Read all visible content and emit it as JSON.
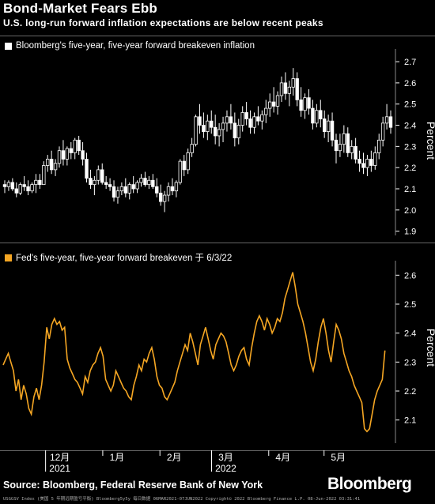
{
  "header": {
    "title": "Bond-Market Fears Ebb",
    "subtitle": "U.S. long-run forward inflation expectations are below recent peaks"
  },
  "footer": {
    "source": "Source: Bloomberg, Federal Reserve Bank of New York",
    "brand": "Bloomberg",
    "fineprint": "USGGSV Index (美国 5 年期远期盈亏平衡) Bloomberg5y5y  每日数据 06MAR2021-07JUN2022   Copyright© 2022 Bloomberg Finance L.P.   08-Jun-2022 03:31:41"
  },
  "colors": {
    "candle": "#ffffff",
    "fed_line": "#f5a623",
    "background": "#000000",
    "rule": "#666666"
  },
  "x_axis": {
    "ticks": [
      {
        "label": "12月",
        "date": "2021-12-01"
      },
      {
        "label": "1月",
        "date": "2022-01-01"
      },
      {
        "label": "2月",
        "date": "2022-02-01"
      },
      {
        "label": "3月",
        "date": "2022-03-01"
      },
      {
        "label": "4月",
        "date": "2022-04-01"
      },
      {
        "label": "5月",
        "date": "2022-05-01"
      }
    ],
    "year_labels": [
      {
        "label": "2021",
        "date": "2021-12-01"
      },
      {
        "label": "2022",
        "date": "2022-03-01"
      }
    ]
  },
  "chart_data": [
    {
      "type": "candlestick",
      "legend": "Bloomberg's five-year, five-year forward breakeven inflation",
      "ylabel": "Percent",
      "ylim": [
        1.88,
        2.76
      ],
      "yticks": [
        "1.9",
        "2.0",
        "2.1",
        "2.2",
        "2.3",
        "2.4",
        "2.5",
        "2.6",
        "2.7"
      ],
      "x_start": "2021-11-08",
      "x_end": "2022-06-07",
      "candles": [
        [
          2.12,
          2.14,
          2.08,
          2.11
        ],
        [
          2.11,
          2.14,
          2.09,
          2.13
        ],
        [
          2.13,
          2.15,
          2.09,
          2.1
        ],
        [
          2.1,
          2.13,
          2.06,
          2.08
        ],
        [
          2.08,
          2.13,
          2.07,
          2.12
        ],
        [
          2.12,
          2.16,
          2.09,
          2.11
        ],
        [
          2.11,
          2.14,
          2.07,
          2.09
        ],
        [
          2.09,
          2.13,
          2.08,
          2.12
        ],
        [
          2.12,
          2.17,
          2.08,
          2.14
        ],
        [
          2.14,
          2.17,
          2.1,
          2.12
        ],
        [
          2.12,
          2.23,
          2.12,
          2.21
        ],
        [
          2.21,
          2.26,
          2.18,
          2.24
        ],
        [
          2.24,
          2.28,
          2.17,
          2.19
        ],
        [
          2.19,
          2.24,
          2.16,
          2.22
        ],
        [
          2.22,
          2.3,
          2.2,
          2.28
        ],
        [
          2.28,
          2.33,
          2.21,
          2.24
        ],
        [
          2.24,
          2.3,
          2.21,
          2.29
        ],
        [
          2.29,
          2.32,
          2.24,
          2.27
        ],
        [
          2.27,
          2.34,
          2.24,
          2.33
        ],
        [
          2.33,
          2.35,
          2.26,
          2.28
        ],
        [
          2.28,
          2.32,
          2.21,
          2.24
        ],
        [
          2.24,
          2.27,
          2.13,
          2.15
        ],
        [
          2.15,
          2.19,
          2.1,
          2.12
        ],
        [
          2.12,
          2.16,
          2.07,
          2.14
        ],
        [
          2.14,
          2.21,
          2.12,
          2.19
        ],
        [
          2.19,
          2.22,
          2.12,
          2.13
        ],
        [
          2.13,
          2.16,
          2.1,
          2.12
        ],
        [
          2.12,
          2.15,
          2.09,
          2.11
        ],
        [
          2.11,
          2.14,
          2.04,
          2.06
        ],
        [
          2.06,
          2.11,
          2.03,
          2.09
        ],
        [
          2.09,
          2.13,
          2.07,
          2.11
        ],
        [
          2.11,
          2.15,
          2.06,
          2.08
        ],
        [
          2.08,
          2.13,
          2.05,
          2.12
        ],
        [
          2.12,
          2.16,
          2.08,
          2.1
        ],
        [
          2.1,
          2.14,
          2.08,
          2.13
        ],
        [
          2.13,
          2.17,
          2.11,
          2.15
        ],
        [
          2.15,
          2.18,
          2.11,
          2.12
        ],
        [
          2.12,
          2.16,
          2.1,
          2.14
        ],
        [
          2.14,
          2.17,
          2.1,
          2.11
        ],
        [
          2.11,
          2.15,
          2.06,
          2.08
        ],
        [
          2.08,
          2.12,
          2.02,
          2.04
        ],
        [
          2.04,
          2.09,
          1.99,
          2.07
        ],
        [
          2.07,
          2.13,
          2.04,
          2.11
        ],
        [
          2.11,
          2.15,
          2.07,
          2.09
        ],
        [
          2.09,
          2.14,
          2.06,
          2.13
        ],
        [
          2.13,
          2.24,
          2.12,
          2.23
        ],
        [
          2.23,
          2.26,
          2.16,
          2.19
        ],
        [
          2.19,
          2.29,
          2.17,
          2.27
        ],
        [
          2.27,
          2.34,
          2.25,
          2.31
        ],
        [
          2.31,
          2.45,
          2.3,
          2.44
        ],
        [
          2.44,
          2.5,
          2.36,
          2.4
        ],
        [
          2.4,
          2.46,
          2.34,
          2.37
        ],
        [
          2.37,
          2.45,
          2.33,
          2.42
        ],
        [
          2.42,
          2.47,
          2.36,
          2.39
        ],
        [
          2.39,
          2.45,
          2.31,
          2.35
        ],
        [
          2.35,
          2.41,
          2.3,
          2.38
        ],
        [
          2.38,
          2.44,
          2.32,
          2.41
        ],
        [
          2.41,
          2.47,
          2.37,
          2.44
        ],
        [
          2.44,
          2.5,
          2.38,
          2.41
        ],
        [
          2.41,
          2.46,
          2.3,
          2.34
        ],
        [
          2.34,
          2.43,
          2.31,
          2.4
        ],
        [
          2.4,
          2.49,
          2.37,
          2.46
        ],
        [
          2.46,
          2.51,
          2.4,
          2.43
        ],
        [
          2.43,
          2.47,
          2.36,
          2.39
        ],
        [
          2.39,
          2.46,
          2.36,
          2.44
        ],
        [
          2.44,
          2.49,
          2.4,
          2.42
        ],
        [
          2.42,
          2.47,
          2.38,
          2.45
        ],
        [
          2.45,
          2.52,
          2.41,
          2.48
        ],
        [
          2.48,
          2.55,
          2.44,
          2.51
        ],
        [
          2.51,
          2.58,
          2.46,
          2.49
        ],
        [
          2.49,
          2.56,
          2.45,
          2.54
        ],
        [
          2.54,
          2.63,
          2.51,
          2.6
        ],
        [
          2.6,
          2.65,
          2.52,
          2.55
        ],
        [
          2.55,
          2.61,
          2.49,
          2.58
        ],
        [
          2.58,
          2.67,
          2.54,
          2.62
        ],
        [
          2.62,
          2.65,
          2.49,
          2.52
        ],
        [
          2.52,
          2.58,
          2.44,
          2.47
        ],
        [
          2.47,
          2.55,
          2.43,
          2.53
        ],
        [
          2.53,
          2.57,
          2.45,
          2.48
        ],
        [
          2.48,
          2.52,
          2.38,
          2.41
        ],
        [
          2.41,
          2.5,
          2.39,
          2.47
        ],
        [
          2.47,
          2.52,
          2.39,
          2.43
        ],
        [
          2.43,
          2.47,
          2.34,
          2.37
        ],
        [
          2.37,
          2.45,
          2.32,
          2.42
        ],
        [
          2.42,
          2.46,
          2.3,
          2.33
        ],
        [
          2.33,
          2.36,
          2.22,
          2.28
        ],
        [
          2.28,
          2.36,
          2.25,
          2.31
        ],
        [
          2.31,
          2.4,
          2.27,
          2.36
        ],
        [
          2.36,
          2.39,
          2.25,
          2.27
        ],
        [
          2.27,
          2.33,
          2.24,
          2.3
        ],
        [
          2.3,
          2.34,
          2.22,
          2.24
        ],
        [
          2.24,
          2.28,
          2.18,
          2.22
        ],
        [
          2.22,
          2.27,
          2.17,
          2.2
        ],
        [
          2.2,
          2.26,
          2.16,
          2.24
        ],
        [
          2.24,
          2.28,
          2.18,
          2.21
        ],
        [
          2.21,
          2.3,
          2.19,
          2.27
        ],
        [
          2.27,
          2.36,
          2.24,
          2.33
        ],
        [
          2.33,
          2.44,
          2.3,
          2.41
        ],
        [
          2.41,
          2.5,
          2.38,
          2.44
        ],
        [
          2.44,
          2.47,
          2.36,
          2.39
        ]
      ]
    },
    {
      "type": "line",
      "legend": "Fed's five-year, five-year forward breakeven  于 6/3/22",
      "ylabel": "Percent",
      "ylim": [
        2.02,
        2.65
      ],
      "yticks": [
        "2.1",
        "2.2",
        "2.3",
        "2.4",
        "2.5",
        "2.6"
      ],
      "x_start": "2021-11-08",
      "x_end": "2022-06-03",
      "values": [
        2.29,
        2.31,
        2.33,
        2.3,
        2.27,
        2.2,
        2.24,
        2.17,
        2.22,
        2.19,
        2.14,
        2.12,
        2.18,
        2.21,
        2.17,
        2.22,
        2.3,
        2.42,
        2.38,
        2.43,
        2.45,
        2.43,
        2.44,
        2.41,
        2.42,
        2.31,
        2.28,
        2.26,
        2.24,
        2.23,
        2.21,
        2.19,
        2.25,
        2.23,
        2.27,
        2.29,
        2.3,
        2.33,
        2.35,
        2.32,
        2.24,
        2.22,
        2.2,
        2.22,
        2.27,
        2.25,
        2.23,
        2.21,
        2.2,
        2.18,
        2.17,
        2.22,
        2.25,
        2.29,
        2.27,
        2.31,
        2.3,
        2.33,
        2.35,
        2.31,
        2.25,
        2.22,
        2.21,
        2.18,
        2.17,
        2.19,
        2.21,
        2.23,
        2.27,
        2.3,
        2.33,
        2.36,
        2.34,
        2.4,
        2.37,
        2.33,
        2.29,
        2.36,
        2.39,
        2.42,
        2.38,
        2.34,
        2.31,
        2.36,
        2.38,
        2.4,
        2.39,
        2.37,
        2.33,
        2.29,
        2.27,
        2.29,
        2.32,
        2.34,
        2.35,
        2.31,
        2.29,
        2.35,
        2.4,
        2.44,
        2.46,
        2.44,
        2.41,
        2.45,
        2.43,
        2.4,
        2.42,
        2.45,
        2.44,
        2.47,
        2.52,
        2.55,
        2.58,
        2.61,
        2.56,
        2.5,
        2.47,
        2.44,
        2.4,
        2.35,
        2.3,
        2.27,
        2.31,
        2.37,
        2.42,
        2.45,
        2.4,
        2.34,
        2.3,
        2.37,
        2.43,
        2.41,
        2.38,
        2.33,
        2.3,
        2.27,
        2.25,
        2.22,
        2.2,
        2.18,
        2.16,
        2.07,
        2.06,
        2.07,
        2.12,
        2.17,
        2.2,
        2.22,
        2.24,
        2.34
      ]
    }
  ]
}
